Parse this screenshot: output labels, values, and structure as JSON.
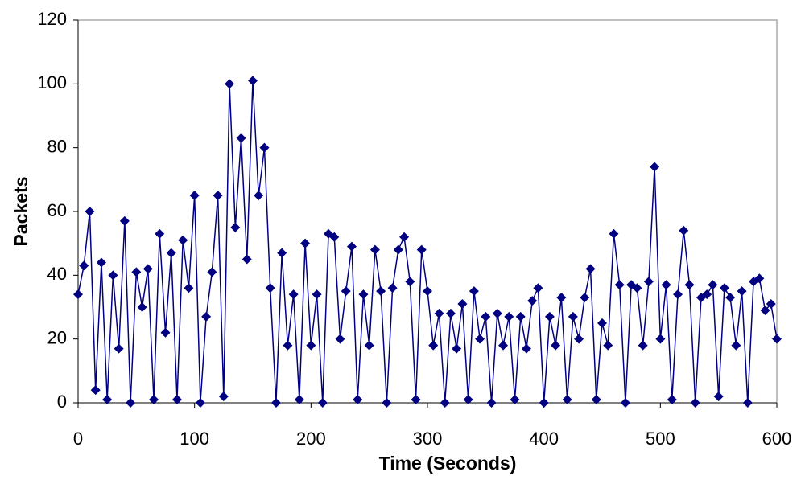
{
  "chart_data": {
    "type": "line",
    "x_label": "Time (Seconds)",
    "y_label": "Packets",
    "xlim": [
      0,
      600
    ],
    "xticks": [
      0,
      100,
      200,
      300,
      400,
      500,
      600
    ],
    "ylim": [
      0,
      120
    ],
    "yticks": [
      0,
      20,
      40,
      60,
      80,
      100,
      120
    ],
    "grid": false,
    "marker": "diamond",
    "x": [
      0,
      5,
      10,
      15,
      20,
      25,
      30,
      35,
      40,
      45,
      50,
      55,
      60,
      65,
      70,
      75,
      80,
      85,
      90,
      95,
      100,
      105,
      110,
      115,
      120,
      125,
      130,
      135,
      140,
      145,
      150,
      155,
      160,
      165,
      170,
      175,
      180,
      185,
      190,
      195,
      200,
      205,
      210,
      215,
      220,
      225,
      230,
      235,
      240,
      245,
      250,
      255,
      260,
      265,
      270,
      275,
      280,
      285,
      290,
      295,
      300,
      305,
      310,
      315,
      320,
      325,
      330,
      335,
      340,
      345,
      350,
      355,
      360,
      365,
      370,
      375,
      380,
      385,
      390,
      395,
      400,
      405,
      410,
      415,
      420,
      425,
      430,
      435,
      440,
      445,
      450,
      455,
      460,
      465,
      470,
      475,
      480,
      485,
      490,
      495,
      500,
      505,
      510,
      515,
      520,
      525,
      530,
      535,
      540,
      545,
      550,
      555,
      560,
      565,
      570,
      575,
      580,
      585,
      590,
      595,
      600
    ],
    "series": [
      {
        "color": "#000080",
        "values": [
          34,
          43,
          60,
          4,
          44,
          1,
          40,
          17,
          57,
          0,
          41,
          30,
          42,
          1,
          53,
          22,
          47,
          1,
          51,
          36,
          65,
          0,
          27,
          41,
          65,
          2,
          100,
          55,
          83,
          45,
          101,
          65,
          80,
          36,
          0,
          47,
          18,
          34,
          1,
          50,
          18,
          34,
          0,
          53,
          52,
          20,
          35,
          49,
          1,
          34,
          18,
          48,
          35,
          0,
          36,
          48,
          52,
          38,
          1,
          48,
          35,
          18,
          28,
          0,
          28,
          17,
          31,
          1,
          35,
          20,
          27,
          0,
          28,
          18,
          27,
          1,
          27,
          17,
          32,
          36,
          0,
          27,
          18,
          33,
          1,
          27,
          20,
          33,
          42,
          1,
          25,
          18,
          53,
          37,
          0,
          37,
          36,
          18,
          38,
          74,
          20,
          37,
          1,
          34,
          54,
          37,
          0,
          33,
          34,
          37,
          2,
          36,
          33,
          18,
          35,
          0,
          38,
          39,
          29,
          31,
          20
        ]
      }
    ]
  }
}
